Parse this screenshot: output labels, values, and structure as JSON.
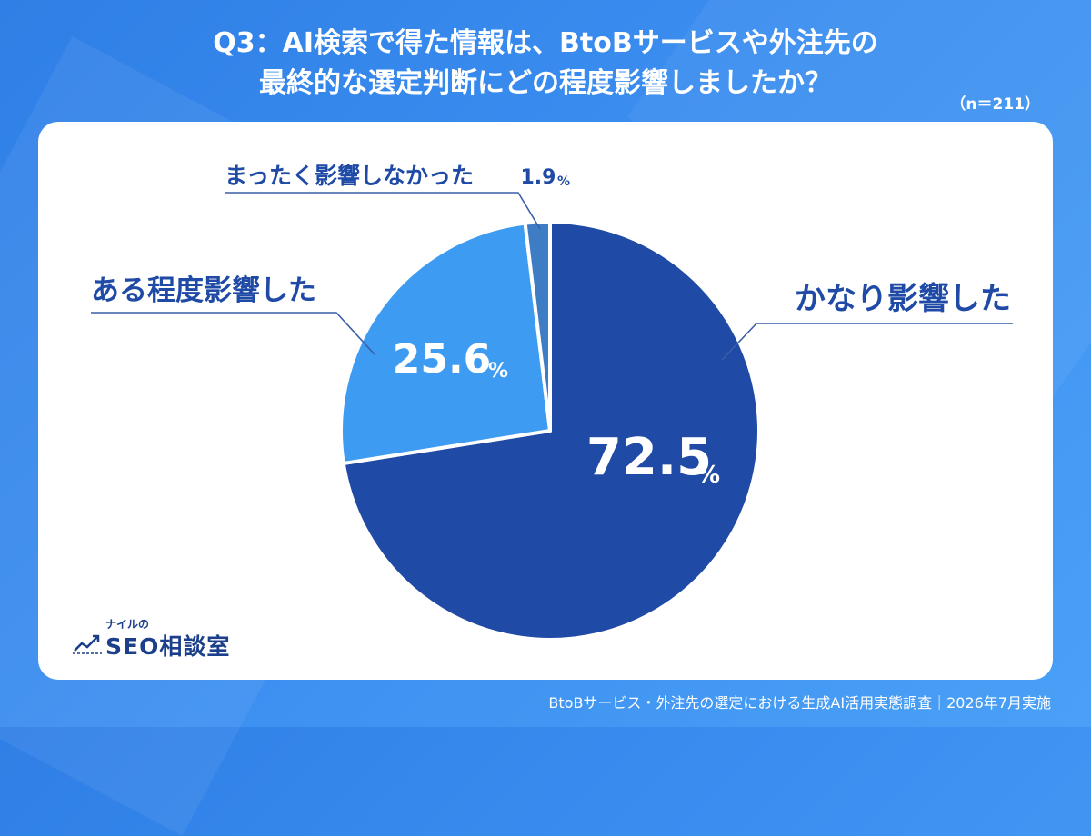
{
  "title": {
    "line1": "Q3：AI検索で得た情報は、BtoBサービスや外注先の",
    "line2": "最終的な選定判断にどの程度影響しましたか？"
  },
  "sample_size": "（n＝211）",
  "footer": "BtoBサービス・外注先の選定における生成AI活用実態調査｜2026年7月実施",
  "logo": {
    "small": "ナイルの",
    "main": "SEO相談室",
    "icon": "trend-chart-icon"
  },
  "chart_data": {
    "type": "pie",
    "categories": [
      "かなり影響した",
      "ある程度影響した",
      "まったく影響しなかった"
    ],
    "values": [
      72.5,
      25.6,
      1.9
    ],
    "value_labels": [
      "72.5",
      "25.6",
      "1.9"
    ],
    "unit": "%",
    "colors": [
      "#1f4aa6",
      "#3e9bf2",
      "#3e7dc4"
    ],
    "start": "12 o'clock, clockwise"
  }
}
